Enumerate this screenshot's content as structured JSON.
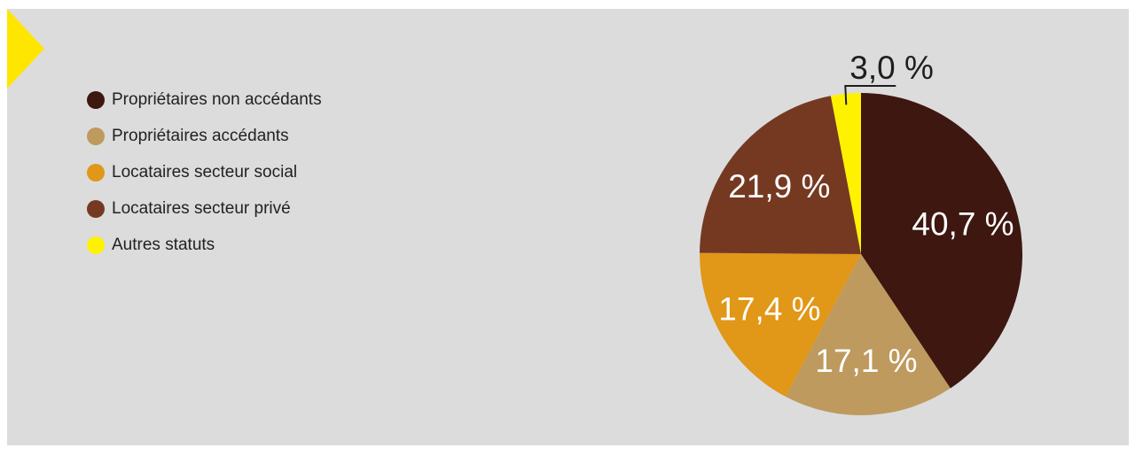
{
  "chart_data": {
    "type": "pie",
    "slices": [
      {
        "name": "Propriétaires non accédants",
        "value": 40.7,
        "label": "40,7 %",
        "color": "#3d1710"
      },
      {
        "name": "Propriétaires accédants",
        "value": 17.1,
        "label": "17,1 %",
        "color": "#be9a5e"
      },
      {
        "name": "Locataires secteur social",
        "value": 17.4,
        "label": "17,4 %",
        "color": "#e19717"
      },
      {
        "name": "Locataires secteur privé",
        "value": 21.9,
        "label": "21,9 %",
        "color": "#753922"
      },
      {
        "name": "Autres statuts",
        "value": 3.0,
        "label": "3,0 %",
        "color": "#fff200"
      }
    ],
    "legend_position": "top-left",
    "start_angle_deg": 0,
    "direction": "clockwise",
    "callout_slice": "Autres statuts"
  },
  "decoration": {
    "panel_color": "#dcdcdd",
    "corner_marker_color": "#ffe600"
  }
}
